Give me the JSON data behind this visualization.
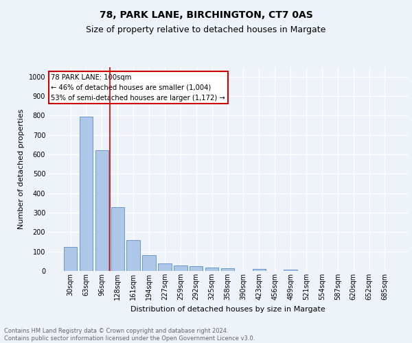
{
  "title1": "78, PARK LANE, BIRCHINGTON, CT7 0AS",
  "title2": "Size of property relative to detached houses in Margate",
  "xlabel": "Distribution of detached houses by size in Margate",
  "ylabel": "Number of detached properties",
  "categories": [
    "30sqm",
    "63sqm",
    "96sqm",
    "128sqm",
    "161sqm",
    "194sqm",
    "227sqm",
    "259sqm",
    "292sqm",
    "325sqm",
    "358sqm",
    "390sqm",
    "423sqm",
    "456sqm",
    "489sqm",
    "521sqm",
    "554sqm",
    "587sqm",
    "620sqm",
    "652sqm",
    "685sqm"
  ],
  "values": [
    122,
    795,
    620,
    330,
    158,
    80,
    38,
    27,
    25,
    18,
    15,
    0,
    10,
    0,
    8,
    0,
    0,
    0,
    0,
    0,
    0
  ],
  "bar_color": "#aec6e8",
  "bar_edge_color": "#5a8fc4",
  "vline_x": 2.5,
  "vline_color": "#cc0000",
  "annotation_text": "78 PARK LANE: 100sqm\n← 46% of detached houses are smaller (1,004)\n53% of semi-detached houses are larger (1,172) →",
  "annotation_box_color": "#ffffff",
  "annotation_edge_color": "#cc0000",
  "ylim": [
    0,
    1050
  ],
  "yticks": [
    0,
    100,
    200,
    300,
    400,
    500,
    600,
    700,
    800,
    900,
    1000
  ],
  "background_color": "#eef2f9",
  "grid_color": "#ffffff",
  "footer_text": "Contains HM Land Registry data © Crown copyright and database right 2024.\nContains public sector information licensed under the Open Government Licence v3.0.",
  "title_fontsize": 10,
  "subtitle_fontsize": 9,
  "tick_fontsize": 7,
  "label_fontsize": 8,
  "footer_fontsize": 6
}
